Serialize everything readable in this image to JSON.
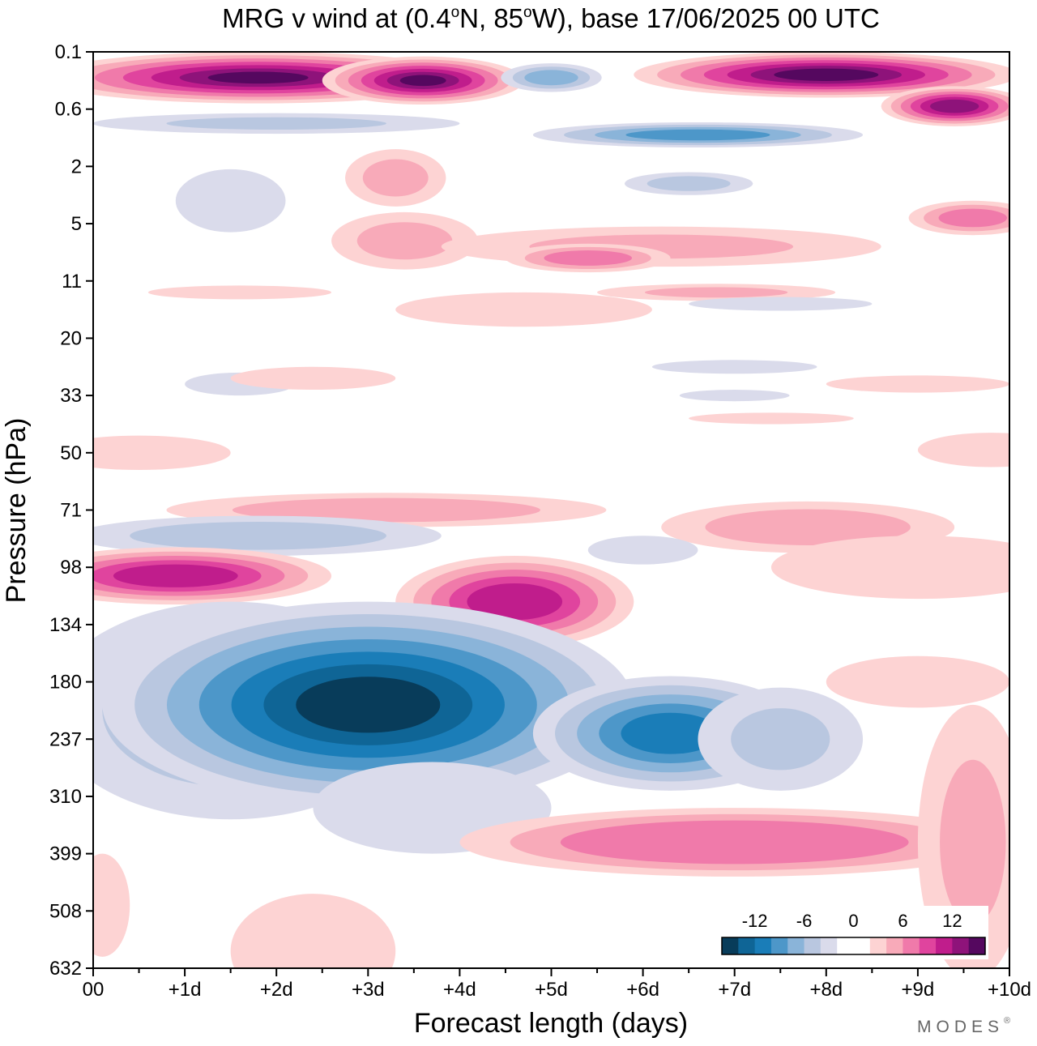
{
  "chart_data": {
    "type": "heatmap",
    "title": "MRG v wind at (0.4°N, 85°W),  base 17/06/2025  00 UTC",
    "title_parts": {
      "pre": "MRG v wind at (0.4",
      "deg1": "o",
      "mid": "N, 85",
      "deg2": "o",
      "post": "W),  base 17/06/2025  00 UTC"
    },
    "xlabel": "Forecast length (days)",
    "ylabel": "Pressure (hPa)",
    "x_ticks": [
      {
        "value": 0,
        "label": "00"
      },
      {
        "value": 1,
        "label": "+1d"
      },
      {
        "value": 2,
        "label": "+2d"
      },
      {
        "value": 3,
        "label": "+3d"
      },
      {
        "value": 4,
        "label": "+4d"
      },
      {
        "value": 5,
        "label": "+5d"
      },
      {
        "value": 6,
        "label": "+6d"
      },
      {
        "value": 7,
        "label": "+7d"
      },
      {
        "value": 8,
        "label": "+8d"
      },
      {
        "value": 9,
        "label": "+9d"
      },
      {
        "value": 10,
        "label": "+10d"
      }
    ],
    "y_ticks": [
      "0.1",
      "0.6",
      "2",
      "5",
      "11",
      "20",
      "33",
      "50",
      "71",
      "98",
      "134",
      "180",
      "237",
      "310",
      "399",
      "508",
      "632"
    ],
    "xlim": [
      0,
      10
    ],
    "y_scale": "log (top 0.1 hPa, bottom 632 hPa)",
    "colorbar": {
      "ticks": [
        {
          "label": "-12",
          "index": 2
        },
        {
          "label": "-6",
          "index": 5
        },
        {
          "label": "0",
          "index": 8
        },
        {
          "label": "6",
          "index": 11
        },
        {
          "label": "12",
          "index": 14
        }
      ],
      "colors": [
        "#083c5a",
        "#0f6596",
        "#1a7db8",
        "#4d97c9",
        "#8ab4d9",
        "#b9c7e0",
        "#dadbeb",
        "#ffffff",
        "#ffffff",
        "#fdd3d3",
        "#f8aab9",
        "#f07aaa",
        "#e0449e",
        "#c01d8c",
        "#8e137a",
        "#55085f"
      ]
    },
    "features": [
      {
        "region": "upper stratosphere",
        "pressure_hPa": "0.1–0.6",
        "days": "0–4.5 and 5.5–10",
        "sign": "positive",
        "peak": "above 12"
      },
      {
        "region": "lower stratosphere",
        "pressure_hPa": "90–110",
        "days": "0–1.5",
        "sign": "positive",
        "peak": "about 9"
      },
      {
        "region": "lower stratosphere",
        "pressure_hPa": "110–140",
        "days": "4–5.5",
        "sign": "positive",
        "peak": "about 9"
      },
      {
        "region": "upper troposphere",
        "pressure_hPa": "134–310",
        "days": "0–8",
        "sign": "negative",
        "peak": "below -14 near days 1.5–4"
      },
      {
        "region": "mid troposphere",
        "pressure_hPa": "310–400",
        "days": "5–9",
        "sign": "positive",
        "peak": "about 9 near day 7"
      }
    ],
    "grid": false,
    "legend_position": "bottom-right inside plot"
  },
  "branding": {
    "text": "MODES",
    "mark": "®"
  }
}
